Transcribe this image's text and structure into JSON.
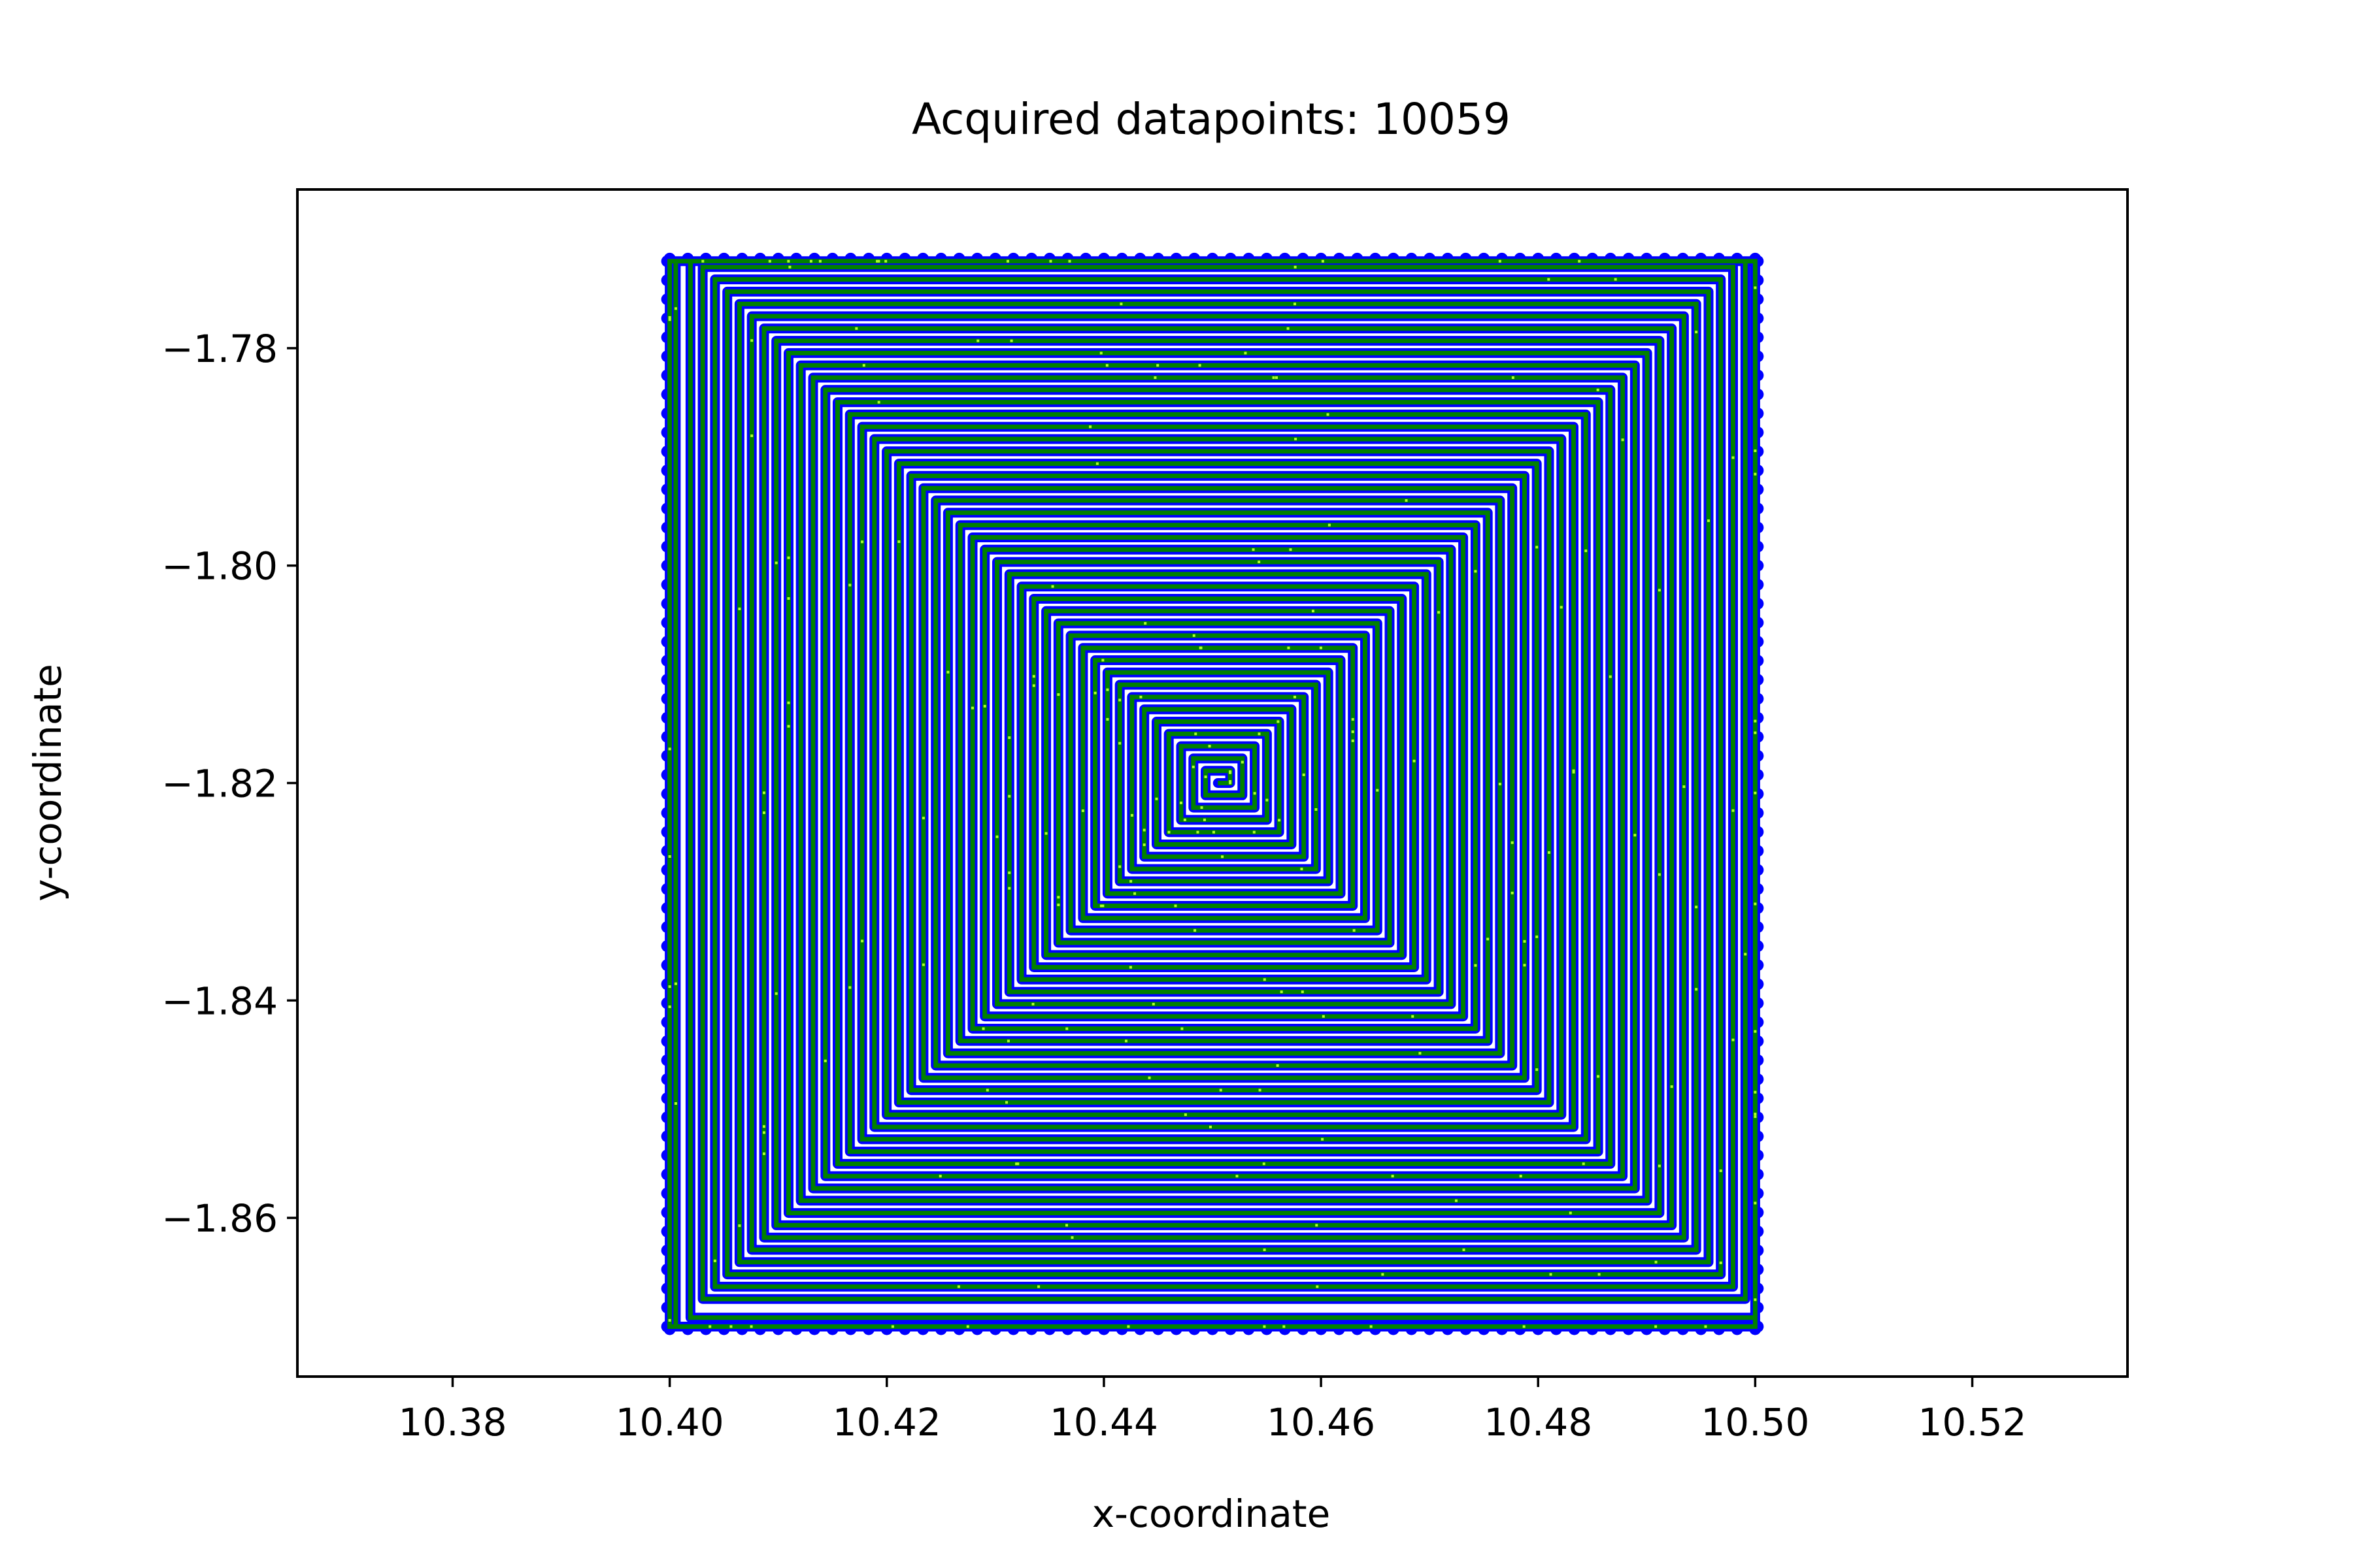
{
  "chart_data": {
    "type": "scatter",
    "title": "Acquired datapoints: 10059",
    "xlabel": "x-coordinate",
    "ylabel": "y-coordinate",
    "xlim": [
      10.3657,
      10.5343
    ],
    "ylim": [
      -1.8746,
      -1.7654
    ],
    "x_ticks": [
      10.38,
      10.4,
      10.42,
      10.44,
      10.46,
      10.48,
      10.5,
      10.52
    ],
    "x_tick_labels": [
      "10.38",
      "10.40",
      "10.42",
      "10.44",
      "10.46",
      "10.48",
      "10.50",
      "10.52"
    ],
    "y_ticks": [
      -1.78,
      -1.8,
      -1.82,
      -1.84,
      -1.86
    ],
    "y_tick_labels": [
      "−1.78",
      "−1.80",
      "−1.82",
      "−1.84",
      "−1.86"
    ],
    "grid": false,
    "description_of_data": "Square spiral scan path centered near (10.45, -1.82), spanning x from about 10.40 to 10.50 and y from about -1.870 to -1.772; spiral arms spaced about 0.0011 apart.",
    "spiral": {
      "center": [
        10.4505,
        -1.82
      ],
      "step": 0.00113,
      "x_range": [
        10.4,
        10.5
      ],
      "y_range": [
        -1.87,
        -1.772
      ]
    },
    "series": [
      {
        "marker_color": "#0000ff",
        "line_color": "#008000"
      }
    ],
    "highlight_color": "#adff2f"
  }
}
